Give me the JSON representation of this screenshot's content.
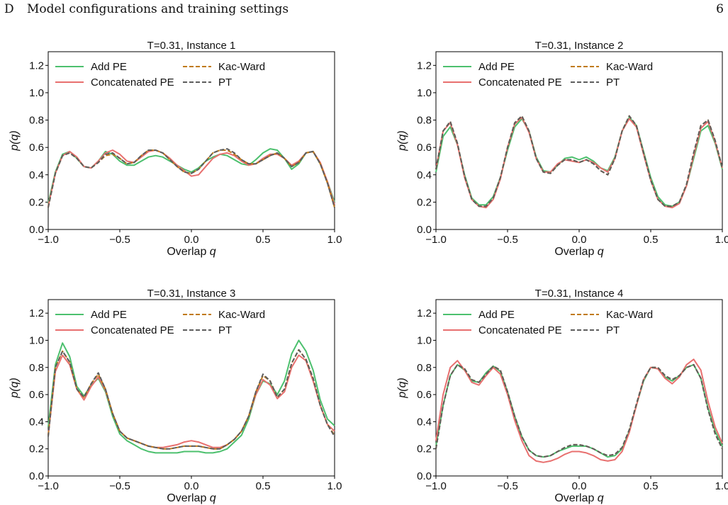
{
  "page": {
    "section_letter": "D",
    "section_title": "Model configurations and training settings",
    "page_number": "6"
  },
  "colors": {
    "add_pe": "#4cc06e",
    "concat_pe": "#e8706f",
    "kac_ward": "#c07a1a",
    "pt": "#5d5d5d"
  },
  "chart_data": [
    {
      "type": "line",
      "title": "T=0.31, Instance 1",
      "xlabel": "Overlap q",
      "ylabel": "p(q)",
      "xlim": [
        -1.0,
        1.0
      ],
      "ylim": [
        0.0,
        1.3
      ],
      "xticks": [
        -1.0,
        -0.5,
        0.0,
        0.5,
        1.0
      ],
      "xtick_labels": [
        "−1.0",
        "−0.5",
        "0.0",
        "0.5",
        "1.0"
      ],
      "yticks": [
        0.0,
        0.2,
        0.4,
        0.6,
        0.8,
        1.0,
        1.2
      ],
      "ytick_labels": [
        "0.0",
        "0.2",
        "0.4",
        "0.6",
        "0.8",
        "1.0",
        "1.2"
      ],
      "grid": false,
      "legend": "top, two columns",
      "x": [
        -1.0,
        -0.95,
        -0.9,
        -0.85,
        -0.8,
        -0.75,
        -0.7,
        -0.65,
        -0.6,
        -0.55,
        -0.5,
        -0.45,
        -0.4,
        -0.35,
        -0.3,
        -0.25,
        -0.2,
        -0.15,
        -0.1,
        -0.05,
        0.0,
        0.05,
        0.1,
        0.15,
        0.2,
        0.25,
        0.3,
        0.35,
        0.4,
        0.45,
        0.5,
        0.55,
        0.6,
        0.65,
        0.7,
        0.75,
        0.8,
        0.85,
        0.9,
        0.95,
        1.0
      ],
      "series": [
        {
          "name": "Add PE",
          "style": "solid",
          "color_key": "add_pe",
          "values": [
            0.19,
            0.42,
            0.55,
            0.57,
            0.52,
            0.46,
            0.45,
            0.5,
            0.57,
            0.55,
            0.5,
            0.47,
            0.47,
            0.5,
            0.53,
            0.54,
            0.53,
            0.5,
            0.47,
            0.44,
            0.42,
            0.45,
            0.5,
            0.53,
            0.55,
            0.54,
            0.51,
            0.48,
            0.47,
            0.51,
            0.56,
            0.59,
            0.58,
            0.52,
            0.44,
            0.48,
            0.56,
            0.57,
            0.48,
            0.35,
            0.2
          ]
        },
        {
          "name": "Concatenated PE",
          "style": "solid",
          "color_key": "concat_pe",
          "values": [
            0.17,
            0.41,
            0.54,
            0.57,
            0.53,
            0.46,
            0.45,
            0.5,
            0.56,
            0.58,
            0.55,
            0.5,
            0.49,
            0.53,
            0.57,
            0.58,
            0.56,
            0.52,
            0.47,
            0.43,
            0.39,
            0.4,
            0.46,
            0.52,
            0.55,
            0.56,
            0.54,
            0.5,
            0.47,
            0.48,
            0.52,
            0.55,
            0.55,
            0.52,
            0.47,
            0.5,
            0.56,
            0.57,
            0.49,
            0.35,
            0.18
          ]
        },
        {
          "name": "Kac-Ward",
          "style": "dashed",
          "color_key": "kac_ward",
          "values": [
            0.16,
            0.41,
            0.54,
            0.56,
            0.52,
            0.46,
            0.45,
            0.49,
            0.54,
            0.55,
            0.52,
            0.48,
            0.49,
            0.54,
            0.58,
            0.58,
            0.56,
            0.51,
            0.46,
            0.42,
            0.41,
            0.44,
            0.5,
            0.56,
            0.58,
            0.58,
            0.55,
            0.51,
            0.48,
            0.48,
            0.51,
            0.54,
            0.56,
            0.52,
            0.46,
            0.49,
            0.56,
            0.57,
            0.48,
            0.34,
            0.16
          ]
        },
        {
          "name": "PT",
          "style": "dashed",
          "color_key": "pt",
          "values": [
            0.16,
            0.41,
            0.54,
            0.56,
            0.52,
            0.46,
            0.45,
            0.49,
            0.55,
            0.56,
            0.52,
            0.48,
            0.49,
            0.54,
            0.58,
            0.58,
            0.56,
            0.51,
            0.46,
            0.42,
            0.41,
            0.44,
            0.5,
            0.56,
            0.58,
            0.59,
            0.56,
            0.51,
            0.48,
            0.48,
            0.51,
            0.54,
            0.56,
            0.52,
            0.46,
            0.49,
            0.56,
            0.57,
            0.48,
            0.34,
            0.16
          ]
        }
      ]
    },
    {
      "type": "line",
      "title": "T=0.31, Instance 2",
      "xlabel": "Overlap q",
      "ylabel": "p(q)",
      "xlim": [
        -1.0,
        1.0
      ],
      "ylim": [
        0.0,
        1.3
      ],
      "xticks": [
        -1.0,
        -0.5,
        0.0,
        0.5,
        1.0
      ],
      "xtick_labels": [
        "−1.0",
        "−0.5",
        "0.0",
        "0.5",
        "1.0"
      ],
      "yticks": [
        0.0,
        0.2,
        0.4,
        0.6,
        0.8,
        1.0,
        1.2
      ],
      "ytick_labels": [
        "0.0",
        "0.2",
        "0.4",
        "0.6",
        "0.8",
        "1.0",
        "1.2"
      ],
      "grid": false,
      "legend": "top, two columns",
      "x": [
        -1.0,
        -0.95,
        -0.9,
        -0.85,
        -0.8,
        -0.75,
        -0.7,
        -0.65,
        -0.6,
        -0.55,
        -0.5,
        -0.45,
        -0.4,
        -0.35,
        -0.3,
        -0.25,
        -0.2,
        -0.15,
        -0.1,
        -0.05,
        0.0,
        0.05,
        0.1,
        0.15,
        0.2,
        0.25,
        0.3,
        0.35,
        0.4,
        0.45,
        0.5,
        0.55,
        0.6,
        0.65,
        0.7,
        0.75,
        0.8,
        0.85,
        0.9,
        0.95,
        1.0
      ],
      "series": [
        {
          "name": "Add PE",
          "style": "solid",
          "color_key": "add_pe",
          "values": [
            0.42,
            0.68,
            0.75,
            0.62,
            0.4,
            0.23,
            0.18,
            0.18,
            0.24,
            0.38,
            0.58,
            0.75,
            0.81,
            0.72,
            0.53,
            0.43,
            0.42,
            0.47,
            0.52,
            0.53,
            0.51,
            0.53,
            0.5,
            0.45,
            0.43,
            0.53,
            0.72,
            0.82,
            0.76,
            0.57,
            0.38,
            0.24,
            0.18,
            0.17,
            0.2,
            0.32,
            0.52,
            0.72,
            0.76,
            0.63,
            0.44
          ]
        },
        {
          "name": "Concatenated PE",
          "style": "solid",
          "color_key": "concat_pe",
          "values": [
            0.44,
            0.72,
            0.78,
            0.62,
            0.38,
            0.22,
            0.17,
            0.16,
            0.22,
            0.37,
            0.6,
            0.77,
            0.82,
            0.71,
            0.52,
            0.42,
            0.42,
            0.48,
            0.51,
            0.5,
            0.49,
            0.51,
            0.49,
            0.45,
            0.42,
            0.52,
            0.72,
            0.81,
            0.75,
            0.55,
            0.36,
            0.22,
            0.17,
            0.16,
            0.19,
            0.32,
            0.54,
            0.74,
            0.79,
            0.64,
            0.45
          ]
        },
        {
          "name": "Kac-Ward",
          "style": "dashed",
          "color_key": "kac_ward",
          "values": [
            0.44,
            0.72,
            0.79,
            0.63,
            0.39,
            0.22,
            0.17,
            0.17,
            0.23,
            0.38,
            0.6,
            0.78,
            0.83,
            0.72,
            0.52,
            0.42,
            0.41,
            0.47,
            0.51,
            0.51,
            0.49,
            0.51,
            0.48,
            0.43,
            0.4,
            0.52,
            0.72,
            0.83,
            0.76,
            0.56,
            0.36,
            0.22,
            0.17,
            0.17,
            0.2,
            0.33,
            0.56,
            0.76,
            0.8,
            0.65,
            0.45
          ]
        },
        {
          "name": "PT",
          "style": "dashed",
          "color_key": "pt",
          "values": [
            0.44,
            0.72,
            0.79,
            0.63,
            0.39,
            0.22,
            0.17,
            0.17,
            0.23,
            0.38,
            0.6,
            0.78,
            0.83,
            0.72,
            0.52,
            0.42,
            0.41,
            0.47,
            0.51,
            0.51,
            0.49,
            0.51,
            0.48,
            0.43,
            0.4,
            0.52,
            0.72,
            0.83,
            0.76,
            0.56,
            0.36,
            0.22,
            0.17,
            0.17,
            0.2,
            0.33,
            0.56,
            0.76,
            0.8,
            0.65,
            0.45
          ]
        }
      ]
    },
    {
      "type": "line",
      "title": "T=0.31, Instance 3",
      "xlabel": "Overlap q",
      "ylabel": "p(q)",
      "xlim": [
        -1.0,
        1.0
      ],
      "ylim": [
        0.0,
        1.3
      ],
      "xticks": [
        -1.0,
        -0.5,
        0.0,
        0.5,
        1.0
      ],
      "xtick_labels": [
        "−1.0",
        "−0.5",
        "0.0",
        "0.5",
        "1.0"
      ],
      "yticks": [
        0.0,
        0.2,
        0.4,
        0.6,
        0.8,
        1.0,
        1.2
      ],
      "ytick_labels": [
        "0.0",
        "0.2",
        "0.4",
        "0.6",
        "0.8",
        "1.0",
        "1.2"
      ],
      "grid": false,
      "legend": "top, two columns",
      "x": [
        -1.0,
        -0.95,
        -0.9,
        -0.85,
        -0.8,
        -0.75,
        -0.7,
        -0.65,
        -0.6,
        -0.55,
        -0.5,
        -0.45,
        -0.4,
        -0.35,
        -0.3,
        -0.25,
        -0.2,
        -0.15,
        -0.1,
        -0.05,
        0.0,
        0.05,
        0.1,
        0.15,
        0.2,
        0.25,
        0.3,
        0.35,
        0.4,
        0.45,
        0.5,
        0.55,
        0.6,
        0.65,
        0.7,
        0.75,
        0.8,
        0.85,
        0.9,
        0.95,
        1.0
      ],
      "series": [
        {
          "name": "Add PE",
          "style": "solid",
          "color_key": "add_pe",
          "values": [
            0.36,
            0.82,
            0.98,
            0.88,
            0.66,
            0.59,
            0.67,
            0.72,
            0.62,
            0.44,
            0.31,
            0.26,
            0.23,
            0.2,
            0.18,
            0.17,
            0.17,
            0.17,
            0.17,
            0.18,
            0.18,
            0.18,
            0.17,
            0.17,
            0.18,
            0.2,
            0.25,
            0.3,
            0.42,
            0.6,
            0.7,
            0.68,
            0.6,
            0.7,
            0.9,
            1.0,
            0.92,
            0.78,
            0.56,
            0.42,
            0.37
          ]
        },
        {
          "name": "Concatenated PE",
          "style": "solid",
          "color_key": "concat_pe",
          "values": [
            0.3,
            0.77,
            0.89,
            0.82,
            0.64,
            0.56,
            0.66,
            0.73,
            0.63,
            0.46,
            0.33,
            0.28,
            0.26,
            0.24,
            0.22,
            0.21,
            0.21,
            0.22,
            0.23,
            0.25,
            0.26,
            0.25,
            0.23,
            0.21,
            0.21,
            0.23,
            0.27,
            0.33,
            0.44,
            0.6,
            0.71,
            0.67,
            0.57,
            0.62,
            0.8,
            0.89,
            0.85,
            0.7,
            0.52,
            0.38,
            0.33
          ]
        },
        {
          "name": "Kac-Ward",
          "style": "dashed",
          "color_key": "kac_ward",
          "values": [
            0.3,
            0.8,
            0.92,
            0.84,
            0.64,
            0.58,
            0.68,
            0.75,
            0.64,
            0.46,
            0.33,
            0.28,
            0.26,
            0.24,
            0.22,
            0.21,
            0.2,
            0.2,
            0.21,
            0.22,
            0.22,
            0.22,
            0.21,
            0.2,
            0.2,
            0.23,
            0.27,
            0.33,
            0.44,
            0.62,
            0.74,
            0.7,
            0.58,
            0.64,
            0.83,
            0.93,
            0.86,
            0.72,
            0.52,
            0.38,
            0.3
          ]
        },
        {
          "name": "PT",
          "style": "dashed",
          "color_key": "pt",
          "values": [
            0.29,
            0.8,
            0.92,
            0.84,
            0.64,
            0.58,
            0.68,
            0.76,
            0.64,
            0.46,
            0.33,
            0.28,
            0.26,
            0.24,
            0.22,
            0.21,
            0.2,
            0.2,
            0.21,
            0.22,
            0.22,
            0.22,
            0.21,
            0.2,
            0.2,
            0.23,
            0.27,
            0.33,
            0.44,
            0.62,
            0.75,
            0.7,
            0.58,
            0.64,
            0.83,
            0.93,
            0.86,
            0.72,
            0.52,
            0.38,
            0.29
          ]
        }
      ]
    },
    {
      "type": "line",
      "title": "T=0.31, Instance 4",
      "xlabel": "Overlap q",
      "ylabel": "p(q)",
      "xlim": [
        -1.0,
        1.0
      ],
      "ylim": [
        0.0,
        1.3
      ],
      "xticks": [
        -1.0,
        -0.5,
        0.0,
        0.5,
        1.0
      ],
      "xtick_labels": [
        "−1.0",
        "−0.5",
        "0.0",
        "0.5",
        "1.0"
      ],
      "yticks": [
        0.0,
        0.2,
        0.4,
        0.6,
        0.8,
        1.0,
        1.2
      ],
      "ytick_labels": [
        "0.0",
        "0.2",
        "0.4",
        "0.6",
        "0.8",
        "1.0",
        "1.2"
      ],
      "grid": false,
      "legend": "top, two columns",
      "x": [
        -1.0,
        -0.95,
        -0.9,
        -0.85,
        -0.8,
        -0.75,
        -0.7,
        -0.65,
        -0.6,
        -0.55,
        -0.5,
        -0.45,
        -0.4,
        -0.35,
        -0.3,
        -0.25,
        -0.2,
        -0.15,
        -0.1,
        -0.05,
        0.0,
        0.05,
        0.1,
        0.15,
        0.2,
        0.25,
        0.3,
        0.35,
        0.4,
        0.45,
        0.5,
        0.55,
        0.6,
        0.65,
        0.7,
        0.75,
        0.8,
        0.85,
        0.9,
        0.95,
        1.0
      ],
      "series": [
        {
          "name": "Add PE",
          "style": "solid",
          "color_key": "add_pe",
          "values": [
            0.22,
            0.52,
            0.74,
            0.82,
            0.78,
            0.7,
            0.69,
            0.76,
            0.81,
            0.77,
            0.62,
            0.44,
            0.29,
            0.19,
            0.15,
            0.14,
            0.15,
            0.18,
            0.2,
            0.22,
            0.22,
            0.22,
            0.2,
            0.17,
            0.14,
            0.15,
            0.2,
            0.33,
            0.52,
            0.7,
            0.8,
            0.79,
            0.73,
            0.7,
            0.74,
            0.8,
            0.82,
            0.72,
            0.5,
            0.33,
            0.22
          ]
        },
        {
          "name": "Concatenated PE",
          "style": "solid",
          "color_key": "concat_pe",
          "values": [
            0.26,
            0.6,
            0.8,
            0.85,
            0.78,
            0.69,
            0.67,
            0.74,
            0.8,
            0.75,
            0.6,
            0.41,
            0.26,
            0.15,
            0.11,
            0.1,
            0.11,
            0.13,
            0.16,
            0.18,
            0.18,
            0.17,
            0.15,
            0.12,
            0.11,
            0.12,
            0.18,
            0.32,
            0.52,
            0.71,
            0.8,
            0.79,
            0.72,
            0.68,
            0.73,
            0.82,
            0.86,
            0.78,
            0.55,
            0.36,
            0.24
          ]
        },
        {
          "name": "Kac-Ward",
          "style": "dashed",
          "color_key": "kac_ward",
          "values": [
            0.2,
            0.52,
            0.74,
            0.82,
            0.79,
            0.71,
            0.69,
            0.75,
            0.81,
            0.78,
            0.62,
            0.44,
            0.29,
            0.19,
            0.15,
            0.14,
            0.15,
            0.18,
            0.21,
            0.23,
            0.23,
            0.22,
            0.2,
            0.17,
            0.15,
            0.16,
            0.21,
            0.34,
            0.53,
            0.71,
            0.8,
            0.8,
            0.74,
            0.71,
            0.74,
            0.8,
            0.82,
            0.72,
            0.49,
            0.31,
            0.2
          ]
        },
        {
          "name": "PT",
          "style": "dashed",
          "color_key": "pt",
          "values": [
            0.2,
            0.52,
            0.74,
            0.82,
            0.79,
            0.71,
            0.69,
            0.75,
            0.81,
            0.78,
            0.62,
            0.44,
            0.29,
            0.19,
            0.15,
            0.14,
            0.15,
            0.18,
            0.21,
            0.23,
            0.23,
            0.22,
            0.2,
            0.17,
            0.15,
            0.16,
            0.21,
            0.34,
            0.53,
            0.71,
            0.8,
            0.8,
            0.74,
            0.71,
            0.74,
            0.8,
            0.82,
            0.72,
            0.49,
            0.31,
            0.2
          ]
        }
      ]
    }
  ]
}
